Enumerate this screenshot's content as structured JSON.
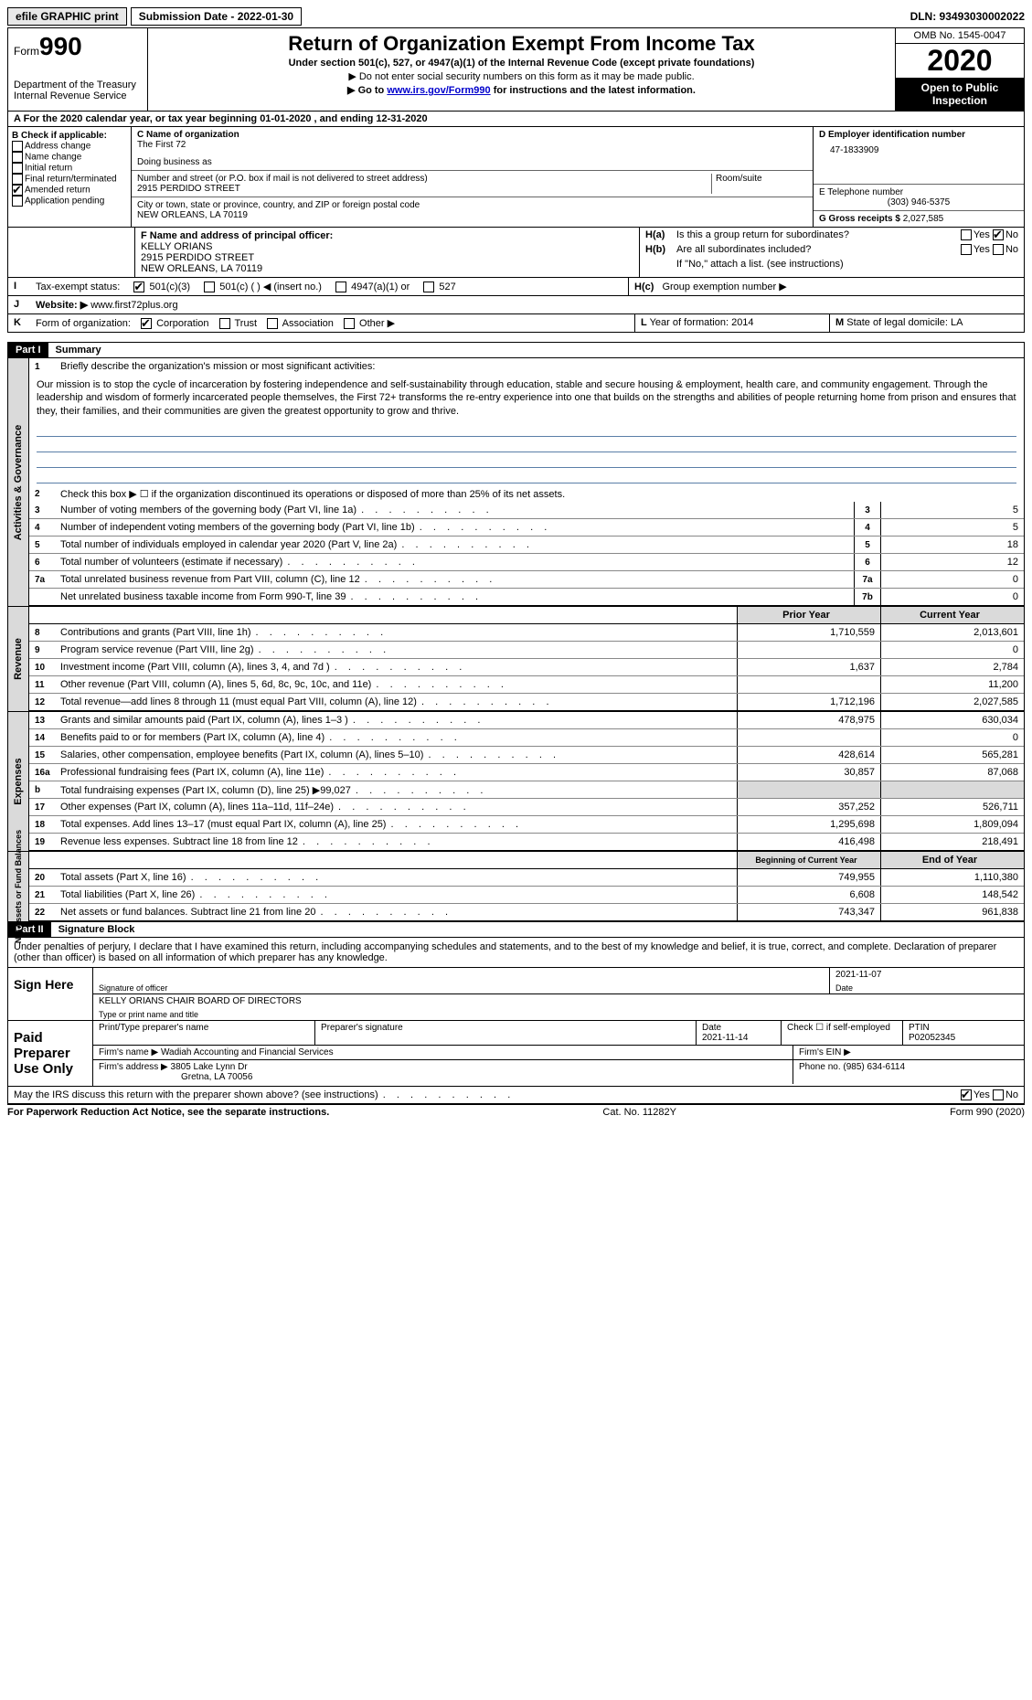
{
  "top": {
    "efile": "efile GRAPHIC print",
    "submission": "Submission Date - 2022-01-30",
    "dln": "DLN: 93493030002022"
  },
  "header": {
    "form_word": "Form",
    "form_num": "990",
    "title": "Return of Organization Exempt From Income Tax",
    "subtitle": "Under section 501(c), 527, or 4947(a)(1) of the Internal Revenue Code (except private foundations)",
    "line1": "▶ Do not enter social security numbers on this form as it may be made public.",
    "line2_pre": "▶ Go to ",
    "line2_link": "www.irs.gov/Form990",
    "line2_post": " for instructions and the latest information.",
    "dept": "Department of the Treasury\nInternal Revenue Service",
    "omb": "OMB No. 1545-0047",
    "year": "2020",
    "open": "Open to Public Inspection"
  },
  "rowA": "A  For the 2020 calendar year, or tax year beginning 01-01-2020   , and ending 12-31-2020",
  "colB": {
    "label": "B Check if applicable:",
    "opts": [
      "Address change",
      "Name change",
      "Initial return",
      "Final return/terminated",
      "Amended return",
      "Application pending"
    ],
    "checked": [
      false,
      false,
      false,
      false,
      true,
      false
    ]
  },
  "colC": {
    "name_label": "C Name of organization",
    "name": "The First 72",
    "dba_label": "Doing business as",
    "addr_label": "Number and street (or P.O. box if mail is not delivered to street address)",
    "addr": "2915 PERDIDO STREET",
    "room_label": "Room/suite",
    "city_label": "City or town, state or province, country, and ZIP or foreign postal code",
    "city": "NEW ORLEANS, LA  70119",
    "officer_label": "F Name and address of principal officer:",
    "officer": "KELLY ORIANS\n2915 PERDIDO STREET\nNEW ORLEANS, LA  70119"
  },
  "colD": {
    "ein_label": "D Employer identification number",
    "ein": "47-1833909",
    "phone_label": "E Telephone number",
    "phone": "(303) 946-5375",
    "gross_label": "G Gross receipts $",
    "gross": "2,027,585"
  },
  "rowH": {
    "ha_label": "H(a)",
    "ha_text": "Is this a group return for subordinates?",
    "hb_label": "H(b)",
    "hb_text": "Are all subordinates included?",
    "hb_note": "If \"No,\" attach a list. (see instructions)",
    "hc_label": "H(c)",
    "hc_text": "Group exemption number ▶",
    "yes": "Yes",
    "no": "No"
  },
  "rowI": {
    "label": "I",
    "text": "Tax-exempt status:",
    "opt1": "501(c)(3)",
    "opt2": "501(c) (  ) ◀ (insert no.)",
    "opt3": "4947(a)(1) or",
    "opt4": "527"
  },
  "rowJ": {
    "label": "J",
    "text": "Website: ▶",
    "url": "www.first72plus.org"
  },
  "rowK": {
    "label": "K",
    "text": "Form of organization:",
    "opts": [
      "Corporation",
      "Trust",
      "Association",
      "Other ▶"
    ],
    "L_label": "L",
    "L_text": "Year of formation: 2014",
    "M_label": "M",
    "M_text": "State of legal domicile: LA"
  },
  "parts": {
    "p1": "Part I",
    "p1_title": "Summary",
    "p2": "Part II",
    "p2_title": "Signature Block"
  },
  "section1": {
    "label": "Activities & Governance",
    "l1_num": "1",
    "l1_text": "Briefly describe the organization's mission or most significant activities:",
    "mission": "Our mission is to stop the cycle of incarceration by fostering independence and self-sustainability through education, stable and secure housing & employment, health care, and community engagement. Through the leadership and wisdom of formerly incarcerated people themselves, the First 72+ transforms the re-entry experience into one that builds on the strengths and abilities of people returning home from prison and ensures that they, their families, and their communities are given the greatest opportunity to grow and thrive.",
    "l2_num": "2",
    "l2_text": "Check this box ▶ ☐  if the organization discontinued its operations or disposed of more than 25% of its net assets.",
    "rows": [
      {
        "n": "3",
        "d": "Number of voting members of the governing body (Part VI, line 1a)",
        "box": "3",
        "v": "5"
      },
      {
        "n": "4",
        "d": "Number of independent voting members of the governing body (Part VI, line 1b)",
        "box": "4",
        "v": "5"
      },
      {
        "n": "5",
        "d": "Total number of individuals employed in calendar year 2020 (Part V, line 2a)",
        "box": "5",
        "v": "18"
      },
      {
        "n": "6",
        "d": "Total number of volunteers (estimate if necessary)",
        "box": "6",
        "v": "12"
      },
      {
        "n": "7a",
        "d": "Total unrelated business revenue from Part VIII, column (C), line 12",
        "box": "7a",
        "v": "0"
      },
      {
        "n": "",
        "d": "Net unrelated business taxable income from Form 990-T, line 39",
        "box": "7b",
        "v": "0"
      }
    ]
  },
  "section2": {
    "label": "Revenue",
    "h1": "Prior Year",
    "h2": "Current Year",
    "rows": [
      {
        "n": "8",
        "d": "Contributions and grants (Part VIII, line 1h)",
        "v1": "1,710,559",
        "v2": "2,013,601"
      },
      {
        "n": "9",
        "d": "Program service revenue (Part VIII, line 2g)",
        "v1": "",
        "v2": "0"
      },
      {
        "n": "10",
        "d": "Investment income (Part VIII, column (A), lines 3, 4, and 7d )",
        "v1": "1,637",
        "v2": "2,784"
      },
      {
        "n": "11",
        "d": "Other revenue (Part VIII, column (A), lines 5, 6d, 8c, 9c, 10c, and 11e)",
        "v1": "",
        "v2": "11,200"
      },
      {
        "n": "12",
        "d": "Total revenue—add lines 8 through 11 (must equal Part VIII, column (A), line 12)",
        "v1": "1,712,196",
        "v2": "2,027,585"
      }
    ]
  },
  "section3": {
    "label": "Expenses",
    "rows": [
      {
        "n": "13",
        "d": "Grants and similar amounts paid (Part IX, column (A), lines 1–3 )",
        "v1": "478,975",
        "v2": "630,034"
      },
      {
        "n": "14",
        "d": "Benefits paid to or for members (Part IX, column (A), line 4)",
        "v1": "",
        "v2": "0"
      },
      {
        "n": "15",
        "d": "Salaries, other compensation, employee benefits (Part IX, column (A), lines 5–10)",
        "v1": "428,614",
        "v2": "565,281"
      },
      {
        "n": "16a",
        "d": "Professional fundraising fees (Part IX, column (A), line 11e)",
        "v1": "30,857",
        "v2": "87,068"
      },
      {
        "n": "b",
        "d": "Total fundraising expenses (Part IX, column (D), line 25) ▶99,027",
        "v1": "gray",
        "v2": "gray"
      },
      {
        "n": "17",
        "d": "Other expenses (Part IX, column (A), lines 11a–11d, 11f–24e)",
        "v1": "357,252",
        "v2": "526,711"
      },
      {
        "n": "18",
        "d": "Total expenses. Add lines 13–17 (must equal Part IX, column (A), line 25)",
        "v1": "1,295,698",
        "v2": "1,809,094"
      },
      {
        "n": "19",
        "d": "Revenue less expenses. Subtract line 18 from line 12",
        "v1": "416,498",
        "v2": "218,491"
      }
    ]
  },
  "section4": {
    "label": "Net Assets or Fund Balances",
    "h1": "Beginning of Current Year",
    "h2": "End of Year",
    "rows": [
      {
        "n": "20",
        "d": "Total assets (Part X, line 16)",
        "v1": "749,955",
        "v2": "1,110,380"
      },
      {
        "n": "21",
        "d": "Total liabilities (Part X, line 26)",
        "v1": "6,608",
        "v2": "148,542"
      },
      {
        "n": "22",
        "d": "Net assets or fund balances. Subtract line 21 from line 20",
        "v1": "743,347",
        "v2": "961,838"
      }
    ]
  },
  "sig": {
    "decl": "Under penalties of perjury, I declare that I have examined this return, including accompanying schedules and statements, and to the best of my knowledge and belief, it is true, correct, and complete. Declaration of preparer (other than officer) is based on all information of which preparer has any knowledge.",
    "sign_here": "Sign Here",
    "sig_officer": "Signature of officer",
    "date1": "2021-11-07",
    "date_label": "Date",
    "name_title": "KELLY ORIANS CHAIR BOARD OF DIRECTORS",
    "type_name": "Type or print name and title",
    "paid": "Paid Preparer Use Only",
    "prep_name_label": "Print/Type preparer's name",
    "prep_sig_label": "Preparer's signature",
    "date2": "2021-11-14",
    "check_if": "Check ☐ if self-employed",
    "ptin_label": "PTIN",
    "ptin": "P02052345",
    "firm_name_label": "Firm's name    ▶",
    "firm_name": "Wadiah Accounting and Financial Services",
    "firm_ein_label": "Firm's EIN ▶",
    "firm_addr_label": "Firm's address ▶",
    "firm_addr1": "3805 Lake Lynn Dr",
    "firm_addr2": "Gretna, LA  70056",
    "phone_label": "Phone no.",
    "firm_phone": "(985) 634-6114",
    "discuss": "May the IRS discuss this return with the preparer shown above? (see instructions)",
    "yes": "Yes",
    "no": "No"
  },
  "footer": {
    "left": "For Paperwork Reduction Act Notice, see the separate instructions.",
    "mid": "Cat. No. 11282Y",
    "right": "Form 990 (2020)"
  }
}
